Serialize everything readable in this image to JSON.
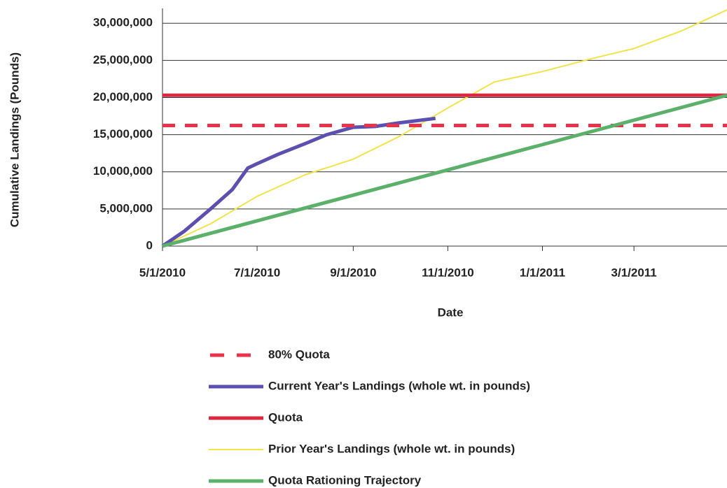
{
  "chart_data": {
    "type": "line",
    "y_label": "Cumulative Landings (Pounds)",
    "x_label": "Date",
    "xlim": [
      "5/1/2010",
      "4/30/2011"
    ],
    "xticks": [
      "5/1/2010",
      "7/1/2010",
      "9/1/2010",
      "11/1/2010",
      "1/1/2011",
      "3/1/2011"
    ],
    "ylim": [
      0,
      32000000
    ],
    "yticks": [
      0,
      {
        "value": 5000000,
        "label": "5,000,000"
      },
      {
        "value": 10000000,
        "label": "10,000,000"
      },
      {
        "value": 15000000,
        "label": "15,000,000"
      },
      {
        "value": 20000000,
        "label": "20,000,000"
      },
      {
        "value": 25000000,
        "label": "25,000,000"
      },
      {
        "value": 30000000,
        "label": "30,000,000"
      }
    ],
    "grid": true,
    "legend": "bottom",
    "series": [
      {
        "name": "80% Quota",
        "color": "#e8334a",
        "dashed": true,
        "x": [
          "5/1/2010",
          "4/30/2011"
        ],
        "values": [
          16240000,
          16240000
        ]
      },
      {
        "name": "Current Year's Landings (whole wt. in pounds)",
        "color": "#5b4fb0",
        "x": [
          "5/1/2010",
          "5/15/2010",
          "6/1/2010",
          "6/15/2010",
          "6/25/2010",
          "7/1/2010",
          "7/15/2010",
          "8/1/2010",
          "8/15/2010",
          "9/1/2010",
          "9/15/2010",
          "10/1/2010",
          "10/24/2010"
        ],
        "values": [
          0,
          2000000,
          5000000,
          7600000,
          10500000,
          11100000,
          12400000,
          13800000,
          15000000,
          16000000,
          16100000,
          16600000,
          17200000
        ]
      },
      {
        "name": "Quota",
        "color": "#d9283f",
        "x": [
          "5/1/2010",
          "4/30/2011"
        ],
        "values": [
          20300000,
          20300000
        ]
      },
      {
        "name": "Prior Year's Landings (whole wt. in pounds)",
        "color": "#f2e34a",
        "x": [
          "5/1/2010",
          "6/1/2010",
          "7/1/2010",
          "8/1/2010",
          "9/1/2010",
          "10/1/2010",
          "11/1/2010",
          "12/1/2010",
          "1/1/2011",
          "2/1/2011",
          "3/1/2011",
          "4/1/2011",
          "4/30/2011"
        ],
        "values": [
          0,
          3000000,
          6700000,
          9600000,
          11700000,
          14800000,
          18600000,
          22100000,
          23500000,
          25200000,
          26600000,
          29000000,
          31800000
        ]
      },
      {
        "name": "Quota Rationing Trajectory",
        "color": "#5bb06a",
        "x": [
          "5/1/2010",
          "4/30/2011"
        ],
        "values": [
          0,
          20300000
        ]
      }
    ]
  }
}
